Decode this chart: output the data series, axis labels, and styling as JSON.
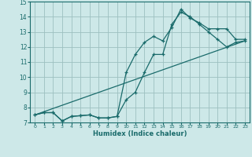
{
  "xlabel": "Humidex (Indice chaleur)",
  "xlim": [
    -0.5,
    23.5
  ],
  "ylim": [
    7,
    15
  ],
  "yticks": [
    7,
    8,
    9,
    10,
    11,
    12,
    13,
    14,
    15
  ],
  "xticks": [
    0,
    1,
    2,
    3,
    4,
    5,
    6,
    7,
    8,
    9,
    10,
    11,
    12,
    13,
    14,
    15,
    16,
    17,
    18,
    19,
    20,
    21,
    22,
    23
  ],
  "bg_color": "#cde8e8",
  "grid_color": "#9dc0c0",
  "line_color": "#1a6b6b",
  "line1_x": [
    0,
    1,
    2,
    3,
    4,
    5,
    6,
    7,
    8,
    9,
    10,
    11,
    12,
    13,
    14,
    15,
    16,
    17,
    18,
    19,
    20,
    21,
    22,
    23
  ],
  "line1_y": [
    7.5,
    7.65,
    7.65,
    7.1,
    7.4,
    7.45,
    7.5,
    7.3,
    7.3,
    7.4,
    10.3,
    11.5,
    12.3,
    12.7,
    12.4,
    13.3,
    14.5,
    13.9,
    13.6,
    13.2,
    13.2,
    13.2,
    12.5,
    12.5
  ],
  "line2_x": [
    0,
    1,
    2,
    3,
    4,
    5,
    6,
    7,
    8,
    9,
    10,
    11,
    12,
    13,
    14,
    15,
    16,
    17,
    18,
    19,
    20,
    21,
    22,
    23
  ],
  "line2_y": [
    7.5,
    7.65,
    7.65,
    7.1,
    7.4,
    7.45,
    7.5,
    7.3,
    7.3,
    7.4,
    8.5,
    9.0,
    10.3,
    11.5,
    11.5,
    13.5,
    14.3,
    14.0,
    13.5,
    13.0,
    12.5,
    12.0,
    12.3,
    12.4
  ],
  "line3_x": [
    0,
    23
  ],
  "line3_y": [
    7.5,
    12.4
  ]
}
